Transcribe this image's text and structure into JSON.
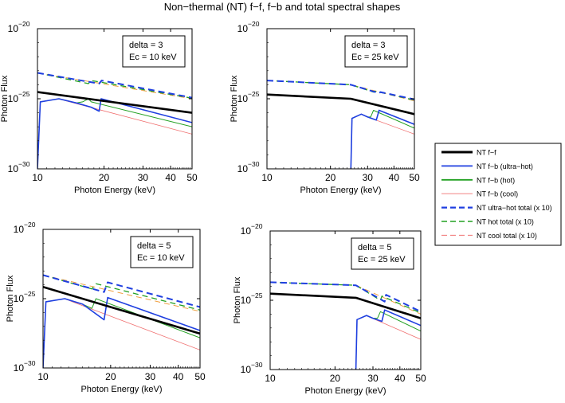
{
  "figure": {
    "title": "Non−thermal (NT) f−f, f−b and total spectral shapes"
  },
  "legend": {
    "placement": "right",
    "items": [
      {
        "label": "NT f−f",
        "color": "#000000",
        "style": "solid-thick"
      },
      {
        "label": "NT f−b (ultra−hot)",
        "color": "#1f3fe0",
        "style": "solid"
      },
      {
        "label": "NT f−b (hot)",
        "color": "#22a022",
        "style": "solid"
      },
      {
        "label": "NT f−b (cool)",
        "color": "#f07070",
        "style": "solid-thin"
      },
      {
        "label": "NT ultra−hot total (x 10)",
        "color": "#1f3fe0",
        "style": "dashed-thick"
      },
      {
        "label": "NT hot total (x 10)",
        "color": "#22a022",
        "style": "dashed"
      },
      {
        "label": "NT cool total (x 10)",
        "color": "#f07070",
        "style": "dashed-thin"
      }
    ]
  },
  "chart_data": [
    {
      "type": "line",
      "xscale": "log",
      "yscale": "log",
      "xlim": [
        10,
        50
      ],
      "ylim": [
        1e-30,
        1e-20
      ],
      "xticks": [
        "10",
        "20",
        "30",
        "40",
        "50"
      ],
      "yticks": [
        "10",
        "10",
        "10"
      ],
      "ytick_exponents": [
        "−30",
        "−25",
        "−20"
      ],
      "xlabel": "Photon Energy (keV)",
      "ylabel": "Photon Flux",
      "annotation": [
        "delta = 3",
        "Ec = 10 keV"
      ],
      "series": [
        {
          "key": "ff",
          "x": [
            10,
            50
          ],
          "y": [
            3e-25,
            1e-26
          ]
        },
        {
          "key": "fb_ultra",
          "x": [
            10,
            10.3,
            12.5,
            15,
            17.5,
            19,
            19.4,
            50
          ],
          "y": [
            1e-30,
            6e-26,
            1e-25,
            5e-26,
            2.5e-26,
            1.3e-26,
            1e-25,
            2e-27
          ]
        },
        {
          "key": "fb_hot",
          "x": [
            10,
            10.3,
            12.5,
            15,
            16,
            17,
            17.5,
            50
          ],
          "y": [
            1e-30,
            6e-26,
            1e-25,
            5e-26,
            6e-26,
            1e-25,
            6e-26,
            1e-27
          ]
        },
        {
          "key": "fb_cool",
          "x": [
            10,
            10.3,
            12.5,
            13.5,
            50
          ],
          "y": [
            1e-30,
            6e-26,
            1e-25,
            7e-26,
            3e-28
          ]
        },
        {
          "key": "tot_ultra",
          "x": [
            10,
            19,
            19.5,
            50
          ],
          "y": [
            7e-24,
            1.2e-24,
            2e-24,
            1.2e-25
          ]
        },
        {
          "key": "tot_hot",
          "x": [
            10,
            17,
            17.5,
            50
          ],
          "y": [
            7e-24,
            1.2e-24,
            2e-24,
            1.1e-25
          ]
        },
        {
          "key": "tot_cool",
          "x": [
            10,
            50
          ],
          "y": [
            7e-24,
            1e-25
          ]
        }
      ]
    },
    {
      "type": "line",
      "xscale": "log",
      "yscale": "log",
      "xlim": [
        10,
        50
      ],
      "ylim": [
        1e-30,
        1e-20
      ],
      "xticks": [
        "10",
        "20",
        "30",
        "40",
        "50"
      ],
      "yticks": [
        "10",
        "10",
        "10"
      ],
      "ytick_exponents": [
        "−30",
        "−25",
        "−20"
      ],
      "xlabel": "Photon Energy (keV)",
      "ylabel": "Photon Flux",
      "annotation": [
        "delta = 3",
        "Ec = 25 keV"
      ],
      "series": [
        {
          "key": "ff",
          "x": [
            10,
            25,
            50
          ],
          "y": [
            2e-25,
            1e-25,
            8e-27
          ]
        },
        {
          "key": "fb_ultra",
          "x": [
            25,
            25.3,
            28,
            30,
            33,
            34,
            50
          ],
          "y": [
            1e-30,
            4e-27,
            8e-27,
            5e-27,
            3e-27,
            1.5e-26,
            1.5e-27
          ]
        },
        {
          "key": "fb_hot",
          "x": [
            25,
            25.3,
            28,
            30,
            31,
            32,
            50
          ],
          "y": [
            1e-30,
            4e-27,
            8e-27,
            5e-27,
            5e-27,
            1.5e-26,
            8e-28
          ]
        },
        {
          "key": "fb_cool",
          "x": [
            25,
            25.3,
            28,
            29,
            50
          ],
          "y": [
            1e-30,
            4e-27,
            8e-27,
            6e-27,
            3e-28
          ]
        },
        {
          "key": "tot_ultra",
          "x": [
            10,
            25,
            34,
            34.5,
            50
          ],
          "y": [
            2e-24,
            1e-24,
            2.5e-25,
            3e-25,
            9e-26
          ]
        },
        {
          "key": "tot_hot",
          "x": [
            10,
            25,
            32,
            32.5,
            50
          ],
          "y": [
            2e-24,
            1e-24,
            3e-25,
            3.5e-25,
            8e-26
          ]
        },
        {
          "key": "tot_cool",
          "x": [
            10,
            25,
            50
          ],
          "y": [
            2e-24,
            1e-24,
            7e-26
          ]
        }
      ]
    },
    {
      "type": "line",
      "xscale": "log",
      "yscale": "log",
      "xlim": [
        10,
        50
      ],
      "ylim": [
        1e-30,
        1e-20
      ],
      "xticks": [
        "10",
        "20",
        "30",
        "40",
        "50"
      ],
      "yticks": [
        "10",
        "10",
        "10"
      ],
      "ytick_exponents": [
        "−30",
        "−25",
        "−20"
      ],
      "xlabel": "Photon Energy (keV)",
      "ylabel": "Photon Flux",
      "annotation": [
        "delta = 5",
        "Ec = 10 keV"
      ],
      "series": [
        {
          "key": "ff",
          "x": [
            10,
            50
          ],
          "y": [
            7e-25,
            3e-28
          ]
        },
        {
          "key": "fb_ultra",
          "x": [
            10,
            10.3,
            12.5,
            15,
            18.7,
            19.4,
            50
          ],
          "y": [
            1e-30,
            6e-26,
            1e-25,
            4e-26,
            3e-27,
            1.2e-25,
            5e-28
          ]
        },
        {
          "key": "fb_hot",
          "x": [
            10,
            10.3,
            12.5,
            15,
            16.5,
            17.2,
            50
          ],
          "y": [
            1e-30,
            6e-26,
            1e-25,
            4e-26,
            2e-26,
            1e-25,
            1.5e-28
          ]
        },
        {
          "key": "fb_cool",
          "x": [
            10,
            10.3,
            12.5,
            13.5,
            50
          ],
          "y": [
            1e-30,
            6e-26,
            1e-25,
            6e-26,
            2e-29
          ]
        },
        {
          "key": "tot_ultra",
          "x": [
            10,
            18.7,
            19.4,
            50
          ],
          "y": [
            5e-24,
            3e-25,
            1.5e-24,
            2.5e-26
          ]
        },
        {
          "key": "tot_hot",
          "x": [
            10,
            16.5,
            17.2,
            50
          ],
          "y": [
            5e-24,
            5e-25,
            1.2e-24,
            1.5e-26
          ]
        },
        {
          "key": "tot_cool",
          "x": [
            10,
            50
          ],
          "y": [
            5e-24,
            1.2e-26
          ]
        }
      ]
    },
    {
      "type": "line",
      "xscale": "log",
      "yscale": "log",
      "xlim": [
        10,
        50
      ],
      "ylim": [
        1e-30,
        1e-20
      ],
      "xticks": [
        "10",
        "20",
        "30",
        "40",
        "50"
      ],
      "yticks": [
        "10",
        "10",
        "10"
      ],
      "ytick_exponents": [
        "−30",
        "−25",
        "−20"
      ],
      "xlabel": "Photon Energy (keV)",
      "ylabel": "Photon Flux",
      "annotation": [
        "delta = 5",
        "Ec = 25 keV"
      ],
      "series": [
        {
          "key": "ff",
          "x": [
            10,
            25,
            50
          ],
          "y": [
            3e-25,
            1.5e-25,
            5e-27
          ]
        },
        {
          "key": "fb_ultra",
          "x": [
            25,
            25.3,
            28,
            30,
            33,
            34,
            50
          ],
          "y": [
            1e-30,
            4e-27,
            8e-27,
            5e-27,
            3e-27,
            2e-26,
            1.5e-27
          ]
        },
        {
          "key": "fb_hot",
          "x": [
            25,
            25.3,
            28,
            30,
            31.5,
            32.5,
            50
          ],
          "y": [
            1e-30,
            4e-27,
            8e-27,
            5e-27,
            5e-27,
            1.5e-26,
            6e-28
          ]
        },
        {
          "key": "fb_cool",
          "x": [
            25,
            25.3,
            28,
            29,
            50
          ],
          "y": [
            1e-30,
            4e-27,
            8e-27,
            6e-27,
            1.5e-28
          ]
        },
        {
          "key": "tot_ultra",
          "x": [
            10,
            25,
            34,
            34.5,
            50
          ],
          "y": [
            2e-24,
            1.2e-24,
            8e-26,
            2.5e-25,
            1.5e-26
          ]
        },
        {
          "key": "tot_hot",
          "x": [
            10,
            25,
            32.5,
            33,
            50
          ],
          "y": [
            2e-24,
            1.2e-24,
            1e-25,
            2e-25,
            1.2e-26
          ]
        },
        {
          "key": "tot_cool",
          "x": [
            10,
            25,
            50
          ],
          "y": [
            2e-24,
            1.2e-24,
            1e-26
          ]
        }
      ]
    }
  ]
}
